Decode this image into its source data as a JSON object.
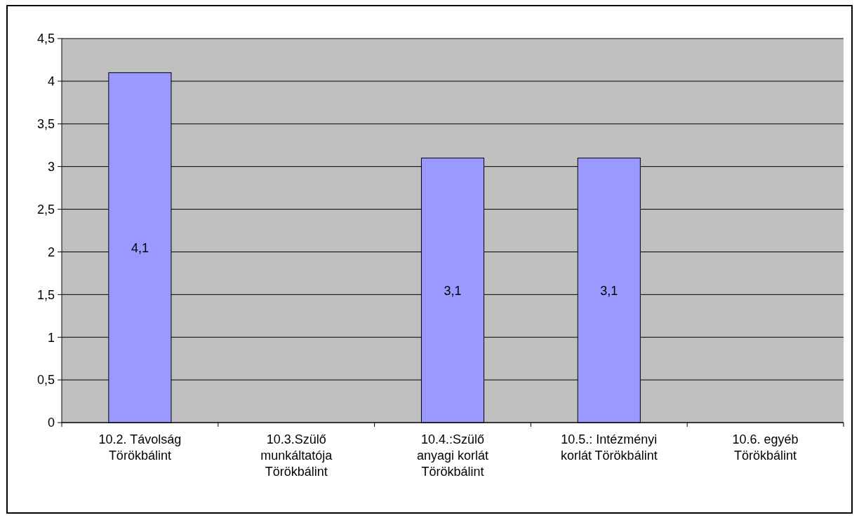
{
  "chart_data": {
    "type": "bar",
    "categories": [
      "10.2. Távolság\nTörökbálint",
      "10.3.Szülő\nmunkáltatója\nTörökbálint",
      "10.4.:Szülő\nanyagi korlát\nTörökbálint",
      "10.5.: Intézményi\nkorlát Törökbálint",
      "10.6. egyéb\nTörökbálint"
    ],
    "values": [
      4.1,
      null,
      3.1,
      3.1,
      null
    ],
    "value_labels": [
      "4,1",
      null,
      "3,1",
      "3,1",
      null
    ],
    "color": "#9999ff",
    "ylim": [
      0,
      4.5
    ],
    "yticks": [
      {
        "value": 0,
        "label": "0"
      },
      {
        "value": 0.5,
        "label": "0,5"
      },
      {
        "value": 1,
        "label": "1"
      },
      {
        "value": 1.5,
        "label": "1,5"
      },
      {
        "value": 2,
        "label": "2"
      },
      {
        "value": 2.5,
        "label": "2,5"
      },
      {
        "value": 3,
        "label": "3"
      },
      {
        "value": 3.5,
        "label": "3,5"
      },
      {
        "value": 4,
        "label": "4"
      },
      {
        "value": 4.5,
        "label": "4,5"
      }
    ],
    "grid": "y"
  }
}
